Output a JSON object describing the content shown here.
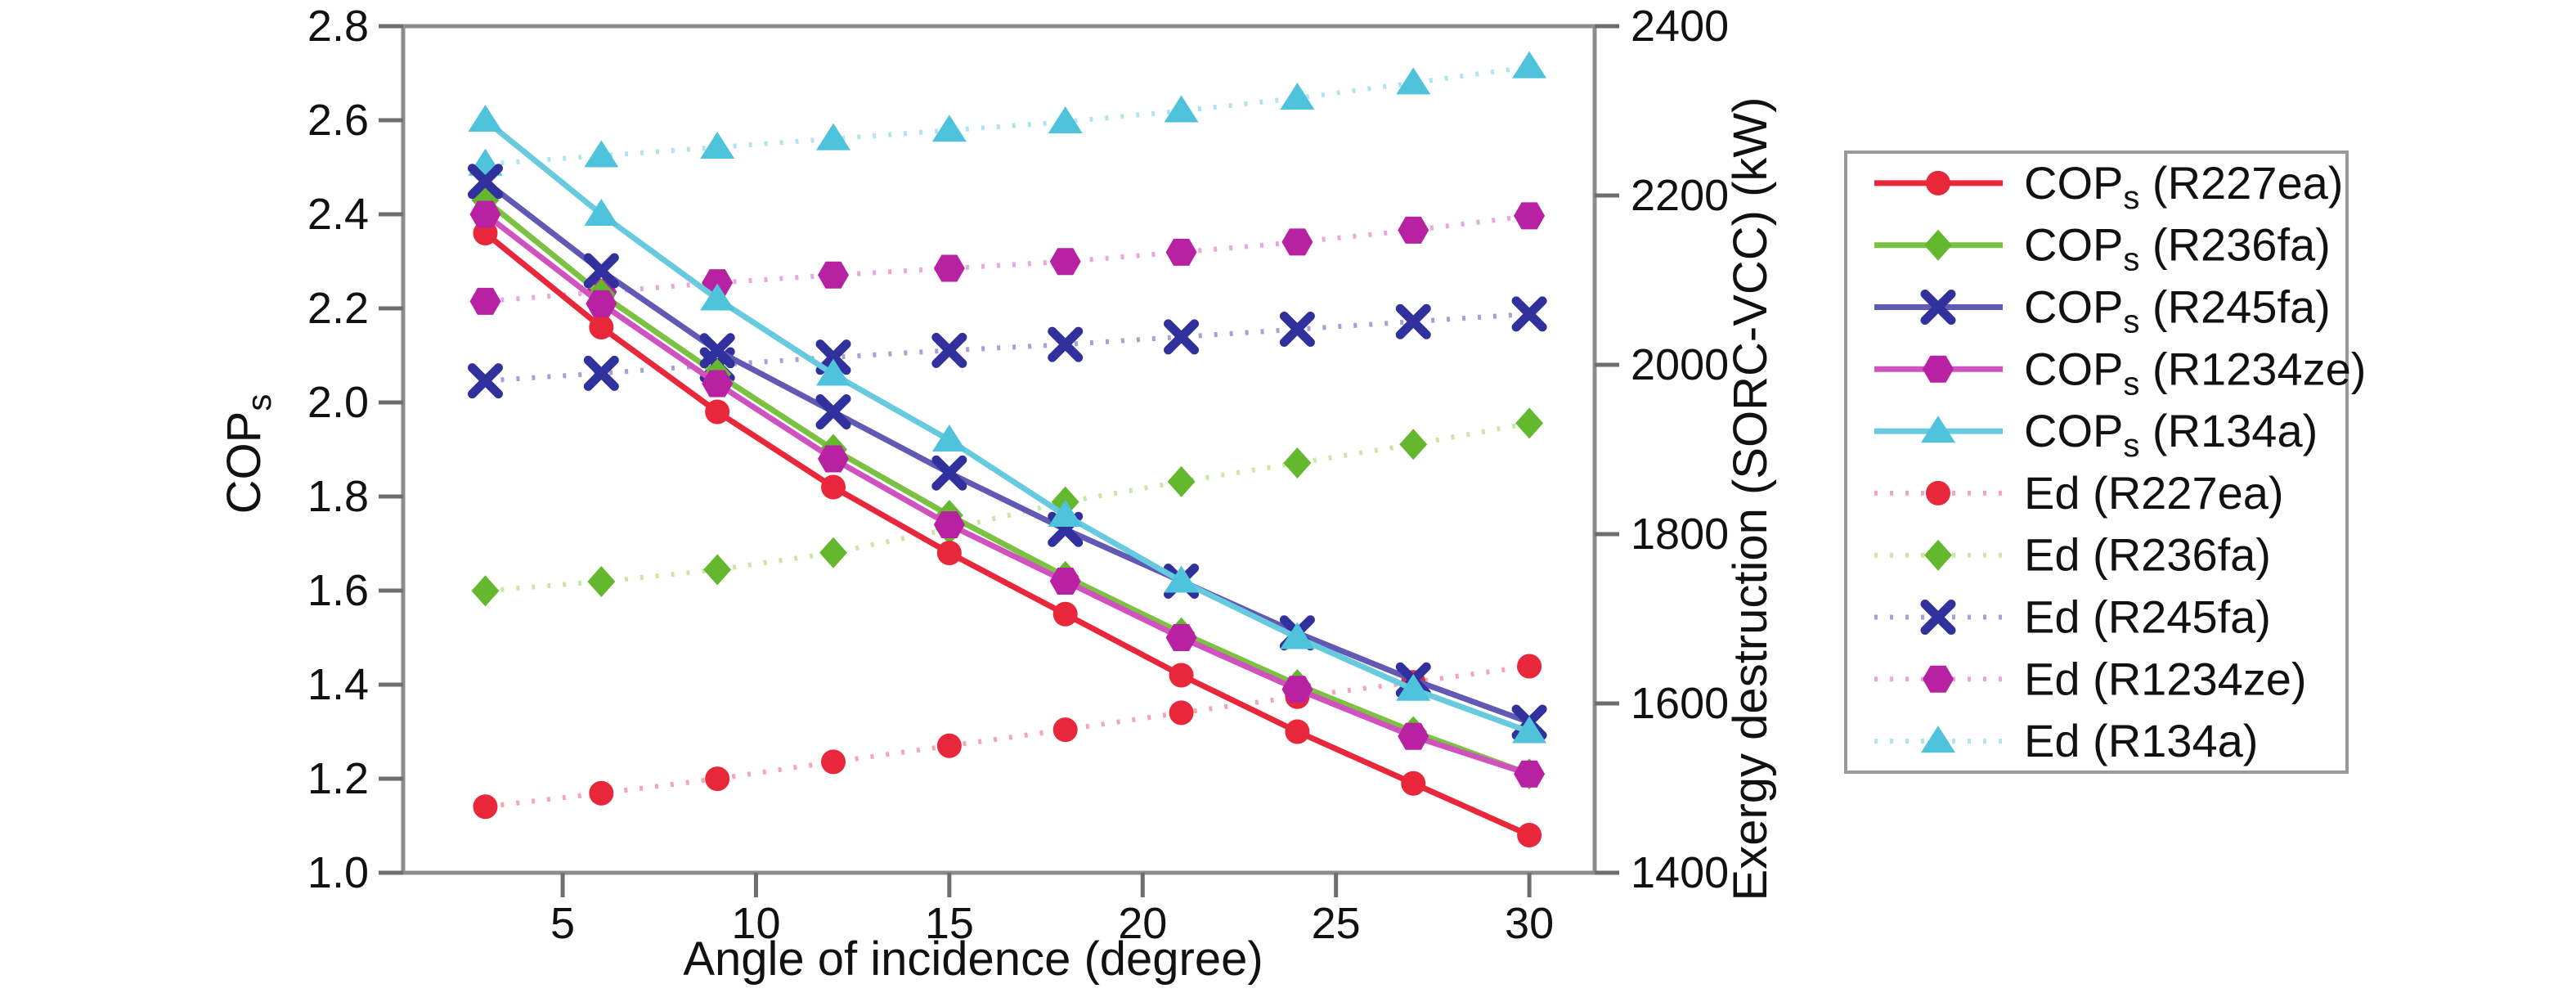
{
  "chart_data": {
    "type": "line",
    "title": "",
    "x_label": "Angle of incidence (degree)",
    "y_left_label": {
      "base": "COP",
      "sub": "s"
    },
    "y_right_label": "Exergy destruction (SORC-VCC) (kW)",
    "legend_position": "right-outside-box",
    "grid": "off",
    "x": [
      3,
      6,
      9,
      12,
      15,
      18,
      21,
      24,
      27,
      30
    ],
    "x_range": [
      0.875,
      31.69
    ],
    "y_left_range": [
      1.0,
      2.8
    ],
    "y_right_range": [
      1400,
      2400
    ],
    "x_ticks": [
      {
        "v": 5,
        "label": "5"
      },
      {
        "v": 10,
        "label": "10"
      },
      {
        "v": 15,
        "label": "15"
      },
      {
        "v": 20,
        "label": "20"
      },
      {
        "v": 25,
        "label": "25"
      },
      {
        "v": 30,
        "label": "30"
      }
    ],
    "y_left_ticks": [
      {
        "v": 2.8,
        "label": "2.8"
      },
      {
        "v": 2.6,
        "label": "2.6"
      },
      {
        "v": 2.4,
        "label": "2.4"
      },
      {
        "v": 2.2,
        "label": "2.2"
      },
      {
        "v": 2.0,
        "label": "2.0"
      },
      {
        "v": 1.8,
        "label": "1.8"
      },
      {
        "v": 1.6,
        "label": "1.6"
      },
      {
        "v": 1.4,
        "label": "1.4"
      },
      {
        "v": 1.2,
        "label": "1.2"
      },
      {
        "v": 1.0,
        "label": "1.0"
      }
    ],
    "y_right_ticks": [
      {
        "v": 2400,
        "label": "2400"
      },
      {
        "v": 2200,
        "label": "2200"
      },
      {
        "v": 2000,
        "label": "2000"
      },
      {
        "v": 1800,
        "label": "1800"
      },
      {
        "v": 1600,
        "label": "1600"
      },
      {
        "v": 1400,
        "label": "1400"
      }
    ],
    "colors": {
      "frame": "#8c8c8c",
      "tick": "#6e6e6e",
      "text": "#111111",
      "legend_border": "#999999"
    },
    "series": [
      {
        "id": "cop-r227ea",
        "legend": {
          "base": "COP",
          "sub": "s",
          "rest": " (R227ea)"
        },
        "axis": "left",
        "line": "solid",
        "marker": "circle",
        "line_color": "#e8273b",
        "marker_color": "#e8273b",
        "values": [
          2.36,
          2.16,
          1.98,
          1.82,
          1.68,
          1.55,
          1.42,
          1.3,
          1.19,
          1.08
        ]
      },
      {
        "id": "cop-r236fa",
        "legend": {
          "base": "COP",
          "sub": "s",
          "rest": " (R236fa)"
        },
        "axis": "left",
        "line": "solid",
        "marker": "diamond",
        "line_color": "#7cc242",
        "marker_color": "#64b82e",
        "values": [
          2.43,
          2.23,
          2.06,
          1.9,
          1.76,
          1.63,
          1.51,
          1.4,
          1.3,
          1.21
        ]
      },
      {
        "id": "cop-r245fa",
        "legend": {
          "base": "COP",
          "sub": "s",
          "rest": " (R245fa)"
        },
        "axis": "left",
        "line": "solid",
        "marker": "x",
        "line_color": "#6159b4",
        "marker_color": "#31319e",
        "values": [
          2.47,
          2.28,
          2.11,
          1.98,
          1.85,
          1.73,
          1.62,
          1.51,
          1.41,
          1.32
        ]
      },
      {
        "id": "cop-r1234ze",
        "legend": {
          "base": "COP",
          "sub": "s",
          "rest": " (R1234ze)"
        },
        "axis": "left",
        "line": "solid",
        "marker": "hexagon",
        "line_color": "#cf52bf",
        "marker_color": "#b822a2",
        "values": [
          2.4,
          2.21,
          2.04,
          1.88,
          1.74,
          1.62,
          1.5,
          1.39,
          1.29,
          1.21
        ]
      },
      {
        "id": "cop-r134a",
        "legend": {
          "base": "COP",
          "sub": "s",
          "rest": " (R134a)"
        },
        "axis": "left",
        "line": "solid",
        "marker": "triangle",
        "line_color": "#67cadf",
        "marker_color": "#4ec3db",
        "values": [
          2.6,
          2.4,
          2.22,
          2.06,
          1.92,
          1.76,
          1.62,
          1.5,
          1.39,
          1.3
        ]
      },
      {
        "id": "ed-r227ea",
        "legend": {
          "base": "Ed",
          "sub": "",
          "rest": " (R227ea)"
        },
        "axis": "right",
        "line": "dotted",
        "marker": "circle",
        "line_color": "#f4a6b2",
        "marker_color": "#e8273b",
        "values": [
          1478,
          1494,
          1511,
          1531,
          1550,
          1569,
          1589,
          1608,
          1625,
          1644
        ]
      },
      {
        "id": "ed-r236fa",
        "legend": {
          "base": "Ed",
          "sub": "",
          "rest": " (R236fa)"
        },
        "axis": "right",
        "line": "dotted",
        "marker": "diamond",
        "line_color": "#c9e7a6",
        "marker_color": "#64b82e",
        "values": [
          1733,
          1744,
          1758,
          1778,
          1806,
          1838,
          1862,
          1884,
          1906,
          1931
        ]
      },
      {
        "id": "ed-r245fa",
        "legend": {
          "base": "Ed",
          "sub": "",
          "rest": " (R245fa)"
        },
        "axis": "right",
        "line": "dotted",
        "marker": "x",
        "line_color": "#a5a1d8",
        "marker_color": "#31319e",
        "values": [
          1981,
          1990,
          2000,
          2009,
          2017,
          2024,
          2033,
          2042,
          2051,
          2060
        ]
      },
      {
        "id": "ed-r1234ze",
        "legend": {
          "base": "Ed",
          "sub": "",
          "rest": " (R1234ze)"
        },
        "axis": "right",
        "line": "dotted",
        "marker": "hexagon",
        "line_color": "#eba6de",
        "marker_color": "#b822a2",
        "values": [
          2075,
          2086,
          2097,
          2106,
          2114,
          2122,
          2133,
          2145,
          2159,
          2176
        ]
      },
      {
        "id": "ed-r134a",
        "legend": {
          "base": "Ed",
          "sub": "",
          "rest": " (R134a)"
        },
        "axis": "right",
        "line": "dotted",
        "marker": "triangle",
        "line_color": "#b0e4f0",
        "marker_color": "#4ec3db",
        "values": [
          2237,
          2247,
          2257,
          2267,
          2277,
          2287,
          2300,
          2315,
          2333,
          2352
        ]
      }
    ]
  }
}
